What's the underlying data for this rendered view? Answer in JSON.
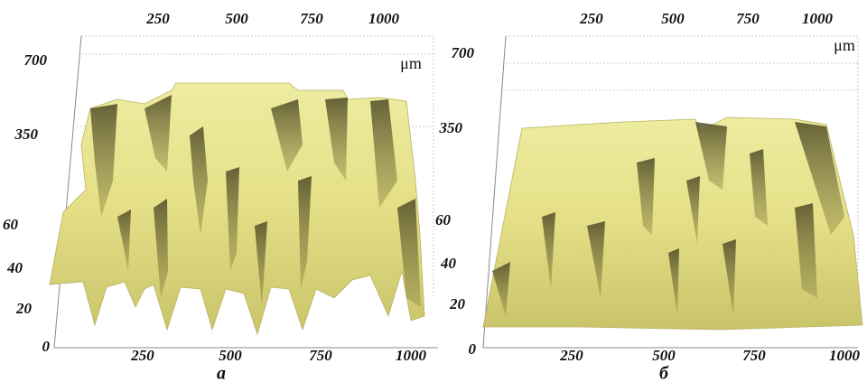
{
  "panels": [
    {
      "label": "а",
      "unit": "μm",
      "top_ticks": [
        "250",
        "500",
        "750",
        "1000"
      ],
      "left_ticks": [
        "700",
        "350",
        "60",
        "40",
        "20",
        "0"
      ],
      "bottom_ticks": [
        "250",
        "500",
        "750",
        "1000"
      ]
    },
    {
      "label": "б",
      "unit": "μm",
      "top_ticks": [
        "250",
        "500",
        "750",
        "1000"
      ],
      "left_ticks": [
        "700",
        "350",
        "60",
        "40",
        "20",
        "0"
      ],
      "bottom_ticks": [
        "250",
        "500",
        "750",
        "1000"
      ]
    }
  ]
}
